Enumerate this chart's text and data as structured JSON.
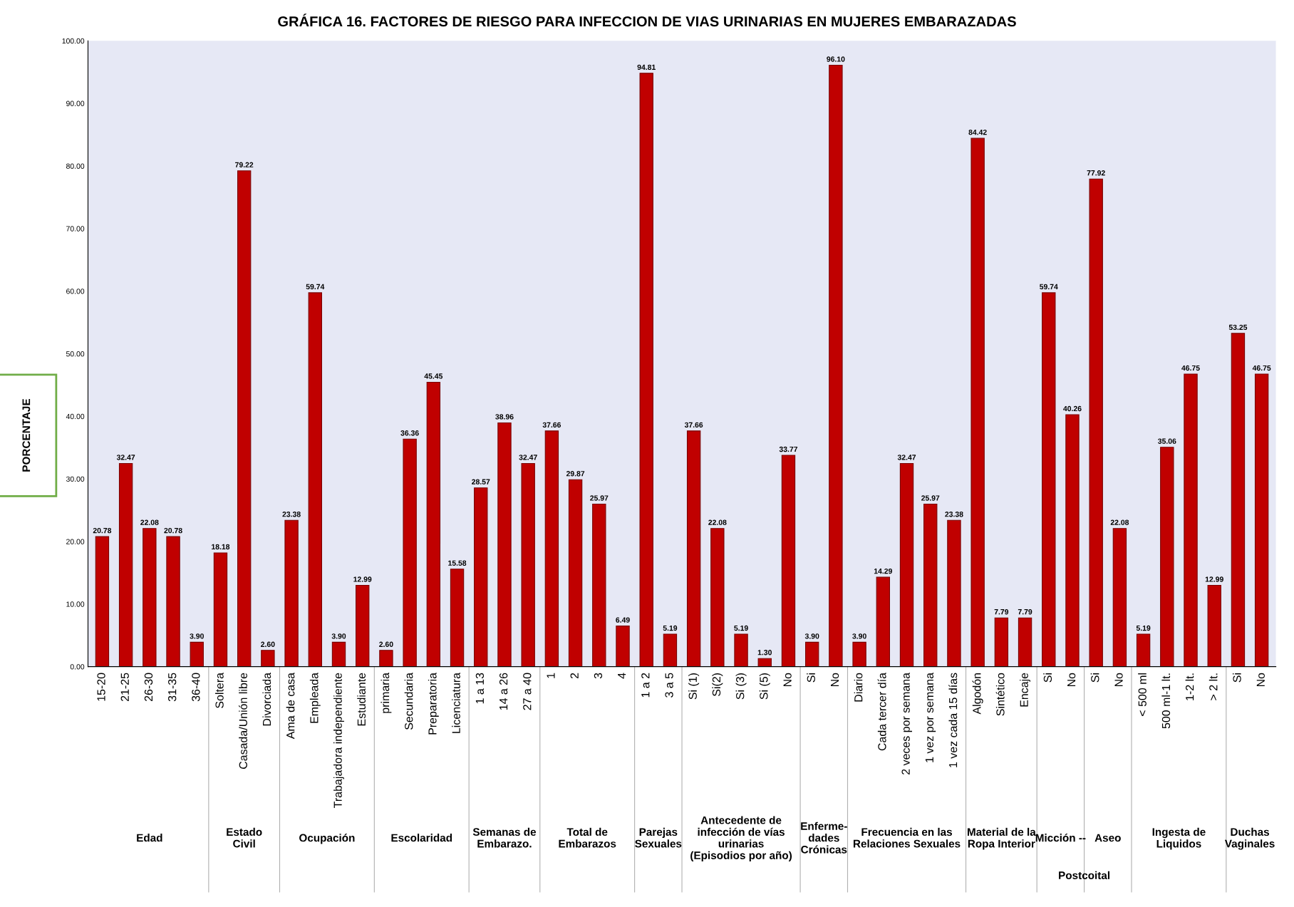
{
  "chart_data": {
    "type": "bar",
    "title": "GRÁFICA 16. FACTORES DE RIESGO PARA INFECCION DE VIAS URINARIAS EN MUJERES EMBARAZADAS",
    "ylabel": "PORCENTAJE",
    "categories": [
      "15-20",
      "21-25",
      "26-30",
      "31-35",
      "36-40",
      "Soltera",
      "Casada/Unión libre",
      "Divorciada",
      "Ama de casa",
      "Empleada",
      "Trabajadora independiente",
      "Estudiante",
      "primaria",
      "Secundaria",
      "Preparatoria",
      "Licenciatura",
      "1 a 13",
      "14 a 26",
      "27 a 40",
      "1",
      "2",
      "3",
      "4",
      "1 a 2",
      "3 a 5",
      "Si (1)",
      "Si(2)",
      "Si (3)",
      "Si (5)",
      "No",
      "Si",
      "No",
      "Diario",
      "Cada tercer día",
      "2 veces por semana",
      "1 vez por semana",
      "1 vez cada 15 días",
      "Algodón",
      "Sintético",
      "Encaje",
      "Si",
      "No",
      "Si",
      "No",
      "< 500 ml",
      "500 ml-1 lt.",
      "1-2 lt.",
      "> 2 lt.",
      "Si",
      "No"
    ],
    "values": [
      20.78,
      32.47,
      22.08,
      20.78,
      3.9,
      18.18,
      79.22,
      2.6,
      23.38,
      59.74,
      3.9,
      12.99,
      2.6,
      36.36,
      45.45,
      15.58,
      28.57,
      38.96,
      32.47,
      37.66,
      29.87,
      25.97,
      6.49,
      94.81,
      5.19,
      37.66,
      22.08,
      5.19,
      1.3,
      33.77,
      3.9,
      96.1,
      3.9,
      14.29,
      32.47,
      25.97,
      23.38,
      84.42,
      7.79,
      7.79,
      59.74,
      40.26,
      77.92,
      22.08,
      5.19,
      35.06,
      46.75,
      12.99,
      53.25,
      46.75
    ],
    "value_labels": [
      "20.78",
      "32.47",
      "22.08",
      "20.78",
      "3.90",
      "18.18",
      "79.22",
      "2.60",
      "23.38",
      "59.74",
      "3.90",
      "12.99",
      "2.60",
      "36.36",
      "45.45",
      "15.58",
      "28.57",
      "38.96",
      "32.47",
      "37.66",
      "29.87",
      "25.97",
      "6.49",
      "94.81",
      "5.19",
      "37.66",
      "22.08",
      "5.19",
      "1.30",
      "33.77",
      "3.90",
      "96.10",
      "3.90",
      "14.29",
      "32.47",
      "25.97",
      "23.38",
      "84.42",
      "7.79",
      "7.79",
      "59.74",
      "40.26",
      "77.92",
      "22.08",
      "5.19",
      "35.06",
      "46.75",
      "12.99",
      "53.25",
      "46.75"
    ],
    "color": "#c00000",
    "ylim": [
      0,
      100
    ],
    "yticks": [
      {
        "value": 0,
        "label": "0.00"
      },
      {
        "value": 10,
        "label": "10.00"
      },
      {
        "value": 20,
        "label": "20.00"
      },
      {
        "value": 30,
        "label": "30.00"
      },
      {
        "value": 40,
        "label": "40.00"
      },
      {
        "value": 50,
        "label": "50.00"
      },
      {
        "value": 60,
        "label": "60.00"
      },
      {
        "value": 70,
        "label": "70.00"
      },
      {
        "value": 80,
        "label": "80.00"
      },
      {
        "value": 90,
        "label": "90.00"
      },
      {
        "value": 100,
        "label": "100.00"
      }
    ],
    "grid": false,
    "annotations": [
      "Edad",
      "Estado\nCivil",
      "Ocupación",
      "Escolaridad",
      "Semanas de\nEmbarazo.",
      "Total de\nEmbarazos",
      "Parejas\nSexuales",
      "Antecedente de\ninfección de vías\nurinarias\n(Episodios por año)",
      "Enferme-\ndades\nCrónicas",
      "Frecuencia en las\nRelaciones Sexuales",
      "Material de la\nRopa Interior",
      "Micción --",
      "Postcoital",
      "Aseo",
      "Ingesta de\nLiquidos",
      "Duchas\nVaginales"
    ]
  }
}
